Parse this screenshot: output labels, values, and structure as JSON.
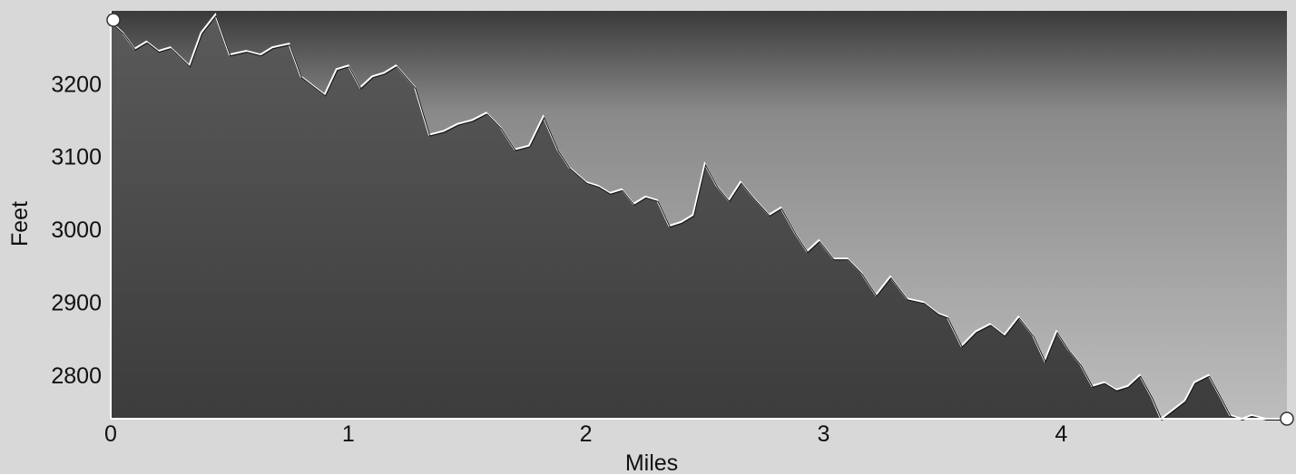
{
  "chart_data": {
    "type": "area",
    "title": "",
    "xlabel": "Miles",
    "ylabel": "Feet",
    "xlim": [
      0,
      4.95
    ],
    "ylim": [
      2740,
      3300
    ],
    "x_ticks": [
      "0",
      "1",
      "2",
      "3",
      "4"
    ],
    "y_ticks": [
      "3200",
      "3100",
      "3000",
      "2900",
      "2800"
    ],
    "x_tick_values": [
      0,
      1,
      2,
      3,
      4
    ],
    "y_tick_values": [
      3200,
      3100,
      3000,
      2900,
      2800
    ],
    "grid": false,
    "legend": "none",
    "colors": {
      "fill": "#4a4a4a",
      "line": "#ffffff",
      "background": "#cfcfcf"
    },
    "series": [
      {
        "x": [
          0,
          0.05,
          0.1,
          0.15,
          0.2,
          0.25,
          0.33,
          0.38,
          0.44,
          0.5,
          0.57,
          0.63,
          0.68,
          0.75,
          0.8,
          0.84,
          0.9,
          0.95,
          1.0,
          1.05,
          1.1,
          1.15,
          1.2,
          1.28,
          1.34,
          1.4,
          1.46,
          1.52,
          1.58,
          1.64,
          1.7,
          1.76,
          1.82,
          1.88,
          1.93,
          2.0,
          2.05,
          2.1,
          2.15,
          2.2,
          2.25,
          2.3,
          2.35,
          2.4,
          2.45,
          2.5,
          2.55,
          2.6,
          2.65,
          2.7,
          2.77,
          2.82,
          2.88,
          2.93,
          2.98,
          3.04,
          3.1,
          3.16,
          3.22,
          3.28,
          3.35,
          3.42,
          3.48,
          3.52,
          3.58,
          3.64,
          3.7,
          3.76,
          3.82,
          3.88,
          3.93,
          3.98,
          4.03,
          4.08,
          4.13,
          4.18,
          4.23,
          4.28,
          4.33,
          4.38,
          4.42,
          4.46,
          4.52,
          4.56,
          4.62,
          4.67,
          4.71,
          4.76,
          4.8,
          4.86,
          4.92
        ],
        "y": [
          3285,
          3270,
          3248,
          3258,
          3245,
          3250,
          3225,
          3270,
          3295,
          3240,
          3245,
          3240,
          3250,
          3255,
          3210,
          3200,
          3185,
          3220,
          3225,
          3195,
          3210,
          3215,
          3225,
          3195,
          3130,
          3135,
          3145,
          3150,
          3160,
          3140,
          3110,
          3115,
          3155,
          3110,
          3085,
          3065,
          3060,
          3050,
          3055,
          3035,
          3045,
          3040,
          3005,
          3010,
          3020,
          3090,
          3060,
          3040,
          3065,
          3045,
          3020,
          3030,
          2995,
          2970,
          2985,
          2960,
          2960,
          2940,
          2910,
          2935,
          2905,
          2900,
          2885,
          2880,
          2840,
          2860,
          2870,
          2855,
          2880,
          2855,
          2820,
          2860,
          2835,
          2815,
          2785,
          2790,
          2780,
          2785,
          2800,
          2770,
          2740,
          2750,
          2765,
          2790,
          2800,
          2770,
          2745,
          2740,
          2745,
          2740,
          2740
        ]
      }
    ]
  }
}
